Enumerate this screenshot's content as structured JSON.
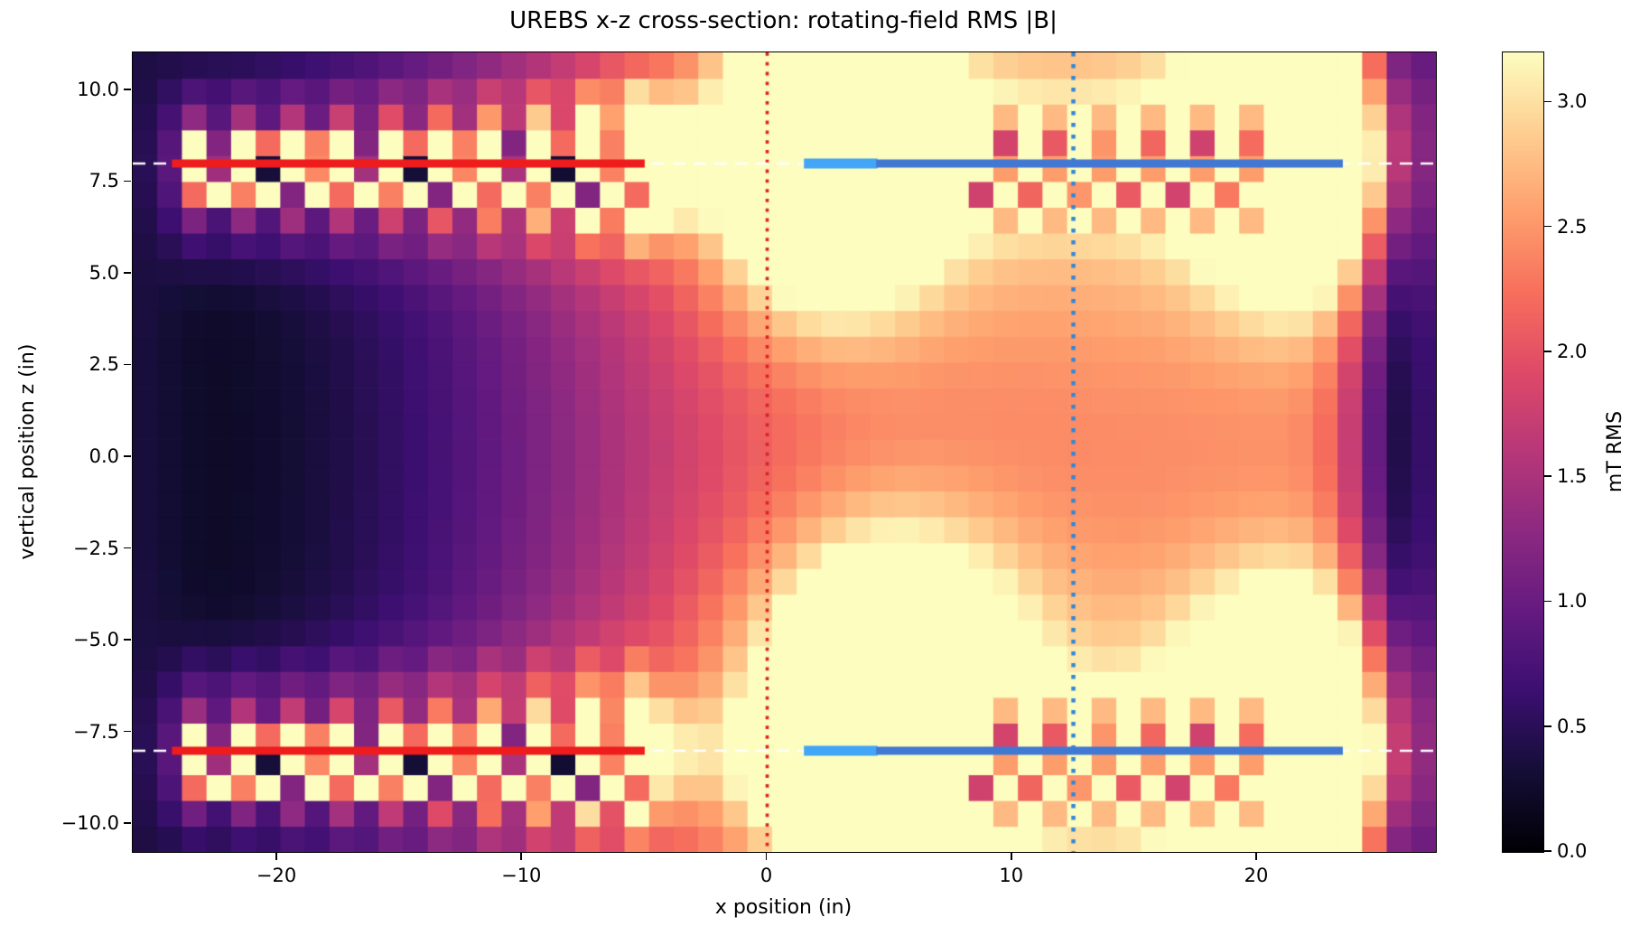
{
  "title": "UREBS x-z cross-section: rotating-field RMS |B|",
  "axes": {
    "xlabel": "x position (in)",
    "ylabel": "vertical position z (in)",
    "x_tick_labels": [
      "−20",
      "−10",
      "0",
      "10",
      "20"
    ],
    "x_tick_values": [
      -20,
      -10,
      0,
      10,
      20
    ],
    "y_tick_labels": [
      "10.0",
      "7.5",
      "5.0",
      "2.5",
      "0.0",
      "−2.5",
      "−5.0",
      "−7.5",
      "−10.0"
    ],
    "y_tick_values": [
      10.0,
      7.5,
      5.0,
      2.5,
      0.0,
      -2.5,
      -5.0,
      -7.5,
      -10.0
    ]
  },
  "colorbar": {
    "label": "mT RMS",
    "tick_labels": [
      "0.0",
      "0.5",
      "1.0",
      "1.5",
      "2.0",
      "2.5",
      "3.0"
    ],
    "tick_values": [
      0.0,
      0.5,
      1.0,
      1.5,
      2.0,
      2.5,
      3.0
    ]
  },
  "chart_data": {
    "type": "heatmap",
    "title": "UREBS x-z cross-section: rotating-field RMS |B|",
    "xlabel": "x position (in)",
    "ylabel": "vertical position z (in)",
    "colorbar_label": "mT RMS",
    "colormap": "magma",
    "vmin": 0.0,
    "vmax": 3.2,
    "x_range": [
      -25.9,
      27.3
    ],
    "z_range": [
      -10.76,
      11.03
    ],
    "grid_cells": [
      53,
      31
    ],
    "grid_on": false,
    "sample_x": [
      -25,
      -20,
      -15,
      -10,
      -5,
      0,
      5,
      10,
      15,
      20,
      25
    ],
    "sample_z": [
      10,
      8,
      5,
      2.5,
      0,
      -2.5,
      -5,
      -8,
      -10
    ],
    "sampled_values_mT": [
      [
        0.5,
        0.8,
        1.0,
        1.2,
        1.9,
        3.2,
        3.0,
        2.4,
        2.5,
        3.2,
        1.5
      ],
      [
        0.7,
        1.4,
        1.5,
        1.8,
        3.2,
        3.2,
        3.2,
        3.0,
        3.0,
        3.2,
        3.2
      ],
      [
        0.5,
        0.8,
        1.1,
        1.4,
        2.0,
        2.9,
        3.2,
        2.7,
        2.7,
        3.0,
        1.6
      ],
      [
        0.35,
        0.4,
        0.8,
        1.2,
        1.8,
        2.4,
        2.6,
        2.6,
        2.6,
        2.5,
        1.0
      ],
      [
        0.3,
        0.2,
        0.7,
        1.1,
        1.7,
        2.2,
        2.4,
        2.5,
        2.5,
        2.3,
        0.9
      ],
      [
        0.35,
        0.4,
        0.8,
        1.2,
        1.8,
        2.4,
        2.8,
        2.7,
        2.6,
        2.5,
        1.0
      ],
      [
        0.5,
        0.8,
        1.1,
        1.4,
        2.0,
        2.7,
        3.2,
        2.8,
        2.7,
        3.0,
        1.6
      ],
      [
        0.7,
        1.4,
        1.5,
        1.8,
        2.9,
        3.1,
        3.2,
        3.0,
        3.0,
        3.2,
        3.2
      ],
      [
        0.5,
        0.8,
        1.0,
        1.2,
        2.2,
        3.0,
        3.2,
        2.6,
        2.4,
        3.0,
        1.5
      ]
    ],
    "colormap_stops": [
      [
        0.0,
        "#000004"
      ],
      [
        0.1,
        "#140e36"
      ],
      [
        0.2,
        "#3b0f70"
      ],
      [
        0.3,
        "#641a80"
      ],
      [
        0.4,
        "#8c2981"
      ],
      [
        0.5,
        "#b73779"
      ],
      [
        0.6,
        "#de4968"
      ],
      [
        0.7,
        "#f76f5c"
      ],
      [
        0.8,
        "#fe9f6d"
      ],
      [
        0.9,
        "#fece91"
      ],
      [
        1.0,
        "#fcfdbf"
      ]
    ],
    "overlays": {
      "guide_lines": {
        "z": [
          8,
          -8
        ],
        "color": "#ffffff",
        "dash": [
          14,
          9
        ],
        "width": 2.5
      },
      "vline_red": {
        "x": 0,
        "color": "#dd2222",
        "dash": [
          3.8,
          7
        ],
        "width": 3.6
      },
      "vline_blue": {
        "x": 12.5,
        "color": "#3386d9",
        "dash": [
          4.5,
          8.5
        ],
        "width": 4.5
      },
      "coil_left": {
        "z": [
          8,
          -8
        ],
        "x0": -24.3,
        "x1": -5.0,
        "color": "#ee1c1c",
        "width": 9
      },
      "coil_right_feed": {
        "z": [
          8,
          -8
        ],
        "x0": 1.5,
        "x1": 4.5,
        "color": "#42a5f5",
        "width": 11
      },
      "coil_right_main": {
        "z": [
          8,
          -8
        ],
        "x0": 4.45,
        "x1": 23.5,
        "color": "#4178d4",
        "width": 9
      }
    },
    "field_model": {
      "profile": {
        "amp": 2.5,
        "center": -8.5,
        "width": 5.2
      },
      "null_column": {
        "x": 26.3,
        "sigma": 1.7,
        "depth": 0.95
      },
      "z_mod": {
        "base": 0.93,
        "amp": 0.22,
        "sigma": 3.5
      },
      "right_edge_bump": {
        "x": 27.3,
        "amp": 0.35,
        "sigma": 1.2
      },
      "ambient": 0.05,
      "left_edge_bump": {
        "x": -25.8,
        "amp": 0.22,
        "sigma": 1.5
      },
      "coil_z": [
        8,
        -8
      ],
      "left_coil_halo": {
        "amp": 1.25,
        "x0": -24.3,
        "x1": -5.0,
        "edge": 0.5,
        "z_sigma": 1.5
      },
      "right_coil_glow": {
        "amp": 1.15,
        "x0": -1.0,
        "x1": 23.8,
        "edge0": 1.0,
        "edge1": 0.7,
        "z_sigma": 1.1
      },
      "blobs": [
        {
          "x": -4.8,
          "z": 8,
          "sx": 1.4,
          "sz": 1.1,
          "amp": 2.4
        },
        {
          "x": -4.8,
          "z": -8,
          "sx": 1.4,
          "sz": 1.1,
          "amp": 1.2
        },
        {
          "x": 2.5,
          "z": 8.4,
          "sx": 3.0,
          "sz": 2.7,
          "amp": 3.2
        },
        {
          "x": 5.0,
          "z": -6.9,
          "sx": 3.4,
          "sz": 2.9,
          "amp": 3.3
        },
        {
          "x": 21.8,
          "z": 8.4,
          "sx": 2.7,
          "sz": 2.4,
          "amp": 3.3
        },
        {
          "x": 21.6,
          "z": -7.9,
          "sx": 2.9,
          "sz": 2.6,
          "amp": 3.4
        }
      ]
    },
    "coil_pattern": {
      "left": {
        "x0": -24.35,
        "x1": -5.05,
        "bright": 3.3,
        "dark_seq": [
          0.55,
          2.35,
          0.25,
          1.2,
          0.8,
          2.2
        ],
        "line_base": 1.4,
        "line_amp": 1.2
      },
      "right": {
        "x0": 8.7,
        "x1": 19.9,
        "bright": 3.3,
        "dark_base": 2.15,
        "dark_amp": 0.35,
        "line_dark": 2.55
      },
      "tier_widths": [
        0.36,
        1.06,
        1.8,
        2.6
      ]
    }
  },
  "colors": {
    "background": "#ffffff",
    "text": "#000000",
    "coil_left": "#ee1c1c",
    "coil_right_feed": "#42a5f5",
    "coil_right_main": "#4178d4",
    "guide_dashed": "#ffffff",
    "vline_red": "#dd2222",
    "vline_blue": "#3386d9",
    "saturated_field": "#fcfdbf",
    "min_field": "#000004"
  }
}
